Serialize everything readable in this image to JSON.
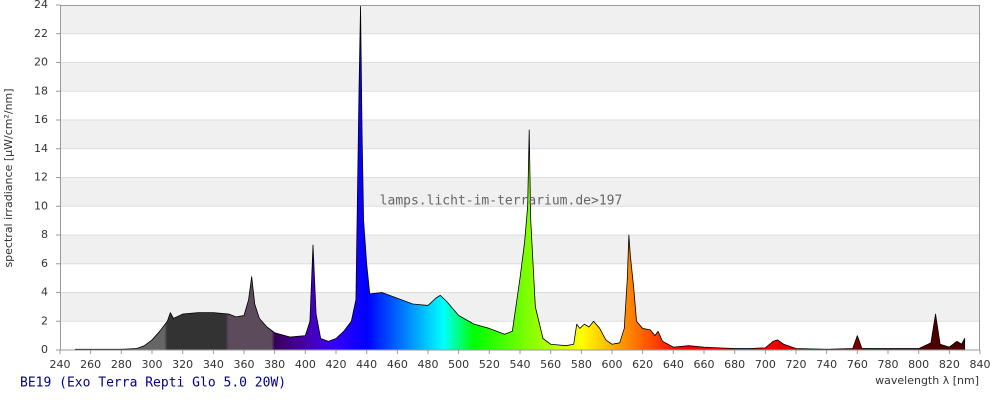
{
  "chart_data": {
    "type": "area",
    "subtitle": "BE19 (Exo Terra Repti Glo 5.0 20W)",
    "annotation": "lamps.licht-im-terrarium.de>197",
    "x_label": "wavelength λ [nm]",
    "y_label": "spectral irradiance [µW/cm²/nm]",
    "xlim": [
      240,
      840
    ],
    "ylim": [
      0,
      24
    ],
    "xticks": [
      240,
      260,
      280,
      300,
      320,
      340,
      360,
      380,
      400,
      420,
      440,
      460,
      480,
      500,
      520,
      540,
      560,
      580,
      600,
      620,
      640,
      660,
      680,
      700,
      720,
      740,
      760,
      780,
      800,
      820,
      840
    ],
    "yticks": [
      0,
      2,
      4,
      6,
      8,
      10,
      12,
      14,
      16,
      18,
      20,
      22,
      24
    ],
    "grid": "bands",
    "x": [
      250,
      260,
      270,
      280,
      290,
      295,
      300,
      305,
      310,
      312,
      314,
      316,
      320,
      330,
      340,
      350,
      355,
      360,
      363,
      365,
      367,
      370,
      375,
      380,
      390,
      400,
      403,
      405,
      407,
      410,
      415,
      420,
      425,
      430,
      433,
      435,
      436,
      437,
      438,
      440,
      442,
      450,
      460,
      470,
      480,
      485,
      488,
      492,
      500,
      510,
      520,
      530,
      535,
      540,
      543,
      545,
      546,
      547,
      550,
      555,
      560,
      570,
      575,
      577,
      579,
      582,
      585,
      588,
      592,
      596,
      600,
      605,
      608,
      610,
      611,
      612,
      614,
      616,
      620,
      625,
      628,
      630,
      633,
      640,
      650,
      660,
      670,
      680,
      690,
      700,
      705,
      708,
      712,
      720,
      740,
      757,
      760,
      763,
      780,
      800,
      808,
      811,
      814,
      820,
      825,
      828,
      830
    ],
    "values": [
      0.05,
      0.05,
      0.05,
      0.05,
      0.1,
      0.3,
      0.7,
      1.3,
      2.0,
      2.6,
      2.2,
      2.3,
      2.5,
      2.6,
      2.6,
      2.5,
      2.3,
      2.4,
      3.5,
      5.1,
      3.2,
      2.2,
      1.6,
      1.2,
      0.9,
      1.0,
      2.0,
      7.3,
      2.5,
      0.8,
      0.6,
      0.8,
      1.3,
      2.0,
      3.5,
      18,
      23.9,
      15,
      9,
      6,
      3.9,
      4.0,
      3.6,
      3.2,
      3.1,
      3.6,
      3.8,
      3.4,
      2.4,
      1.8,
      1.5,
      1.1,
      1.3,
      5,
      7.5,
      10,
      15.3,
      9,
      3,
      0.8,
      0.4,
      0.3,
      0.4,
      1.8,
      1.5,
      1.8,
      1.6,
      2.0,
      1.5,
      0.7,
      0.4,
      0.5,
      1.5,
      5,
      8.0,
      6.5,
      4.5,
      2.0,
      1.5,
      1.4,
      1.0,
      1.3,
      0.6,
      0.2,
      0.3,
      0.2,
      0.15,
      0.1,
      0.1,
      0.15,
      0.6,
      0.7,
      0.4,
      0.1,
      0.05,
      0.1,
      1.0,
      0.1,
      0.1,
      0.1,
      0.5,
      2.5,
      0.4,
      0.2,
      0.6,
      0.4,
      0.8
    ]
  }
}
